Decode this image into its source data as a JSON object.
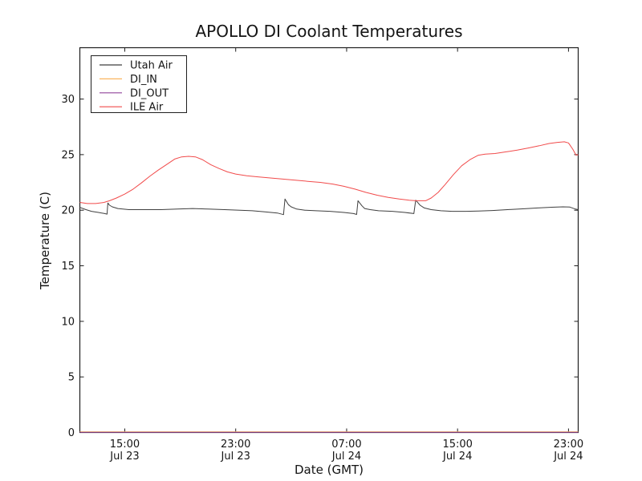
{
  "figure": {
    "background": "#ffffff",
    "spine_color": "#1f1f1f",
    "text_color": "#141414"
  },
  "chart_data": {
    "type": "line",
    "title": "APOLLO DI Coolant Temperatures",
    "xlabel": "Date (GMT)",
    "ylabel": "Temperature (C)",
    "grid": false,
    "legend_position": "upper left",
    "x_unit": "hours since Jul 23 00:00 GMT",
    "xlim": [
      11.76,
      47.7
    ],
    "ylim": [
      0,
      34.62
    ],
    "yticks": [
      0,
      5,
      10,
      15,
      20,
      25,
      30
    ],
    "xticks": [
      {
        "x": 15,
        "label": [
          "15:00",
          "Jul 23"
        ]
      },
      {
        "x": 23,
        "label": [
          "23:00",
          "Jul 23"
        ]
      },
      {
        "x": 31,
        "label": [
          "07:00",
          "Jul 24"
        ]
      },
      {
        "x": 39,
        "label": [
          "15:00",
          "Jul 24"
        ]
      },
      {
        "x": 47,
        "label": [
          "23:00",
          "Jul 24"
        ]
      }
    ],
    "series": [
      {
        "name": "Utah Air",
        "color": "#3f3f3f",
        "x": [
          11.76,
          12.2,
          12.6,
          13.1,
          13.55,
          13.72,
          13.78,
          13.9,
          14.1,
          14.5,
          15.3,
          16.5,
          17.6,
          18.8,
          19.9,
          21.0,
          22.2,
          23.3,
          24.2,
          25.1,
          26.0,
          26.45,
          26.55,
          26.8,
          27.0,
          27.4,
          28.0,
          28.8,
          29.8,
          30.8,
          31.5,
          31.72,
          31.82,
          32.1,
          32.3,
          32.7,
          33.3,
          34.3,
          35.2,
          35.85,
          35.98,
          36.3,
          36.6,
          37.1,
          37.8,
          38.6,
          39.6,
          40.5,
          41.5,
          42.6,
          43.7,
          44.8,
          45.8,
          46.6,
          47.1,
          47.5,
          47.7
        ],
        "y": [
          20.25,
          20.05,
          19.9,
          19.8,
          19.7,
          19.65,
          20.65,
          20.45,
          20.3,
          20.15,
          20.05,
          20.05,
          20.05,
          20.1,
          20.15,
          20.1,
          20.05,
          20.0,
          19.95,
          19.85,
          19.75,
          19.6,
          21.0,
          20.5,
          20.3,
          20.1,
          20.0,
          19.95,
          19.9,
          19.8,
          19.7,
          19.62,
          20.85,
          20.4,
          20.15,
          20.05,
          19.95,
          19.9,
          19.8,
          19.7,
          20.9,
          20.45,
          20.2,
          20.05,
          19.95,
          19.9,
          19.9,
          19.92,
          19.97,
          20.05,
          20.12,
          20.2,
          20.27,
          20.3,
          20.28,
          20.1,
          20.05
        ]
      },
      {
        "name": "DI_IN",
        "color": "#fbb55e",
        "x": [
          11.76,
          47.7
        ],
        "y": [
          0,
          0
        ]
      },
      {
        "name": "DI_OUT",
        "color": "#91459b",
        "x": [
          11.76,
          47.7
        ],
        "y": [
          0,
          0
        ]
      },
      {
        "name": "ILE Air",
        "color": "#f14b4b",
        "x": [
          11.76,
          12.3,
          12.9,
          13.5,
          13.9,
          14.4,
          15.0,
          15.6,
          16.2,
          16.8,
          17.4,
          18.0,
          18.6,
          19.1,
          19.6,
          20.1,
          20.6,
          21.2,
          21.8,
          22.4,
          23.0,
          23.8,
          24.6,
          25.5,
          26.4,
          27.3,
          28.2,
          29.1,
          30.0,
          30.8,
          31.6,
          32.4,
          33.2,
          34.0,
          34.8,
          35.5,
          36.0,
          36.7,
          37.1,
          37.6,
          38.1,
          38.7,
          39.3,
          39.9,
          40.5,
          41.0,
          41.7,
          42.5,
          43.3,
          44.1,
          44.9,
          45.6,
          46.2,
          46.7,
          47.0,
          47.3,
          47.55,
          47.7
        ],
        "y": [
          20.7,
          20.6,
          20.6,
          20.7,
          20.85,
          21.1,
          21.45,
          21.9,
          22.45,
          23.05,
          23.6,
          24.1,
          24.6,
          24.8,
          24.85,
          24.8,
          24.55,
          24.1,
          23.75,
          23.45,
          23.25,
          23.1,
          23.0,
          22.9,
          22.8,
          22.7,
          22.6,
          22.5,
          22.35,
          22.15,
          21.9,
          21.6,
          21.35,
          21.15,
          21.0,
          20.9,
          20.85,
          20.85,
          21.1,
          21.6,
          22.3,
          23.2,
          24.0,
          24.55,
          24.95,
          25.05,
          25.1,
          25.25,
          25.4,
          25.6,
          25.8,
          26.0,
          26.1,
          26.15,
          26.05,
          25.5,
          24.95,
          25.0
        ]
      }
    ]
  }
}
